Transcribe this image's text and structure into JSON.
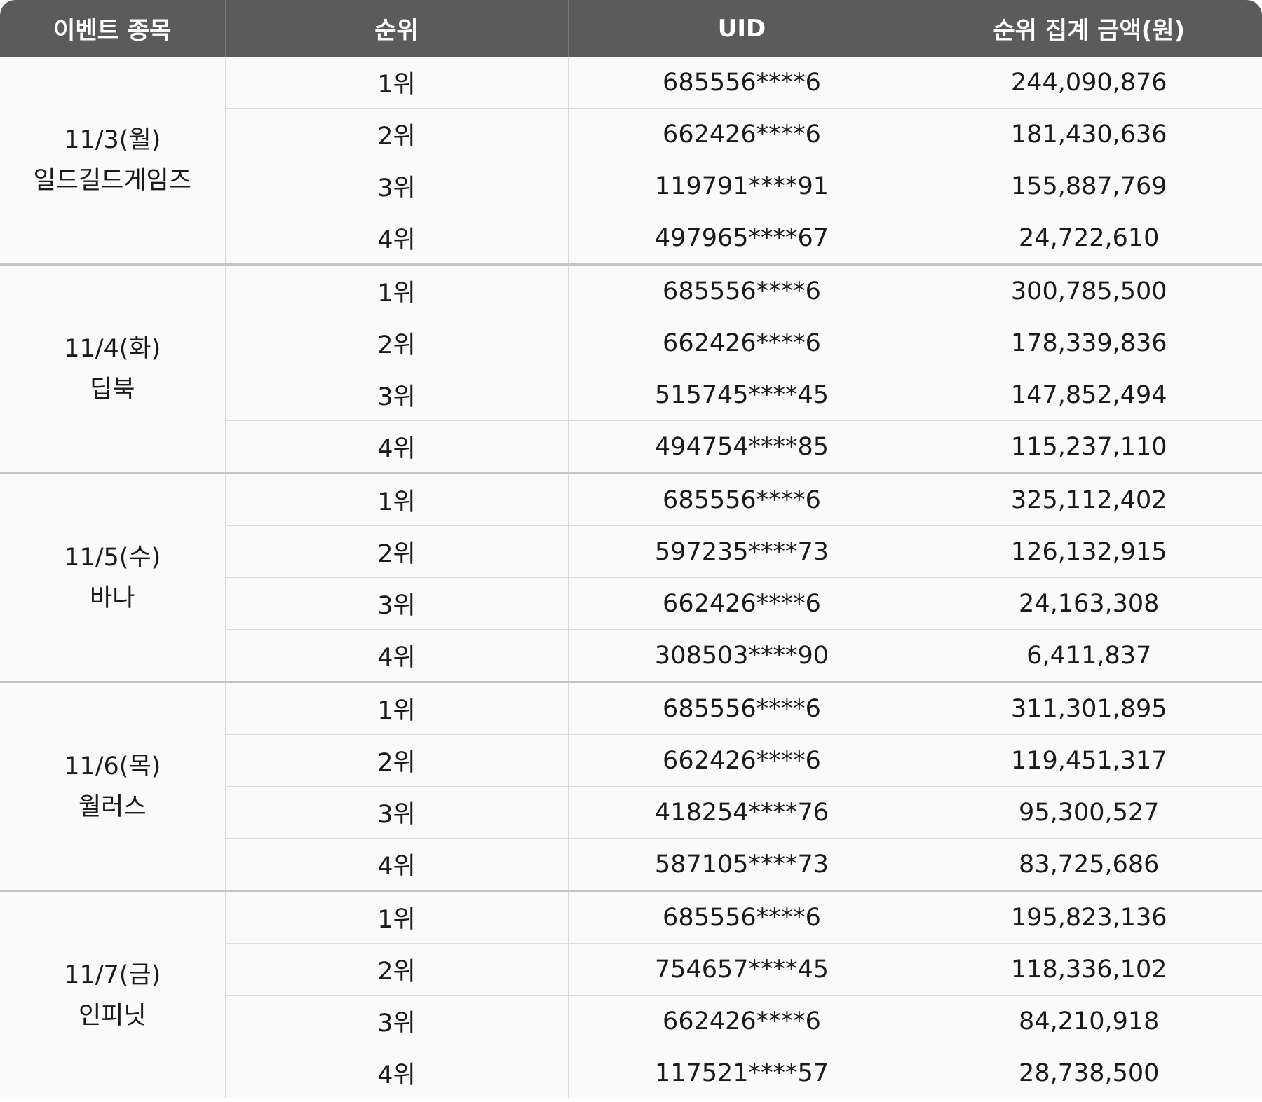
{
  "table": {
    "headers": [
      "이벤트 종목",
      "순위",
      "UID",
      "순위 집계  금액(원)"
    ],
    "groups": [
      {
        "date": "11/3(월)",
        "name": "일드길드게임즈",
        "rows": [
          {
            "rank": "1위",
            "uid": "685556****6",
            "amount": "244,090,876"
          },
          {
            "rank": "2위",
            "uid": "662426****6",
            "amount": "181,430,636"
          },
          {
            "rank": "3위",
            "uid": "119791****91",
            "amount": "155,887,769"
          },
          {
            "rank": "4위",
            "uid": "497965****67",
            "amount": "24,722,610"
          }
        ]
      },
      {
        "date": "11/4(화)",
        "name": "딥북",
        "rows": [
          {
            "rank": "1위",
            "uid": "685556****6",
            "amount": "300,785,500"
          },
          {
            "rank": "2위",
            "uid": "662426****6",
            "amount": "178,339,836"
          },
          {
            "rank": "3위",
            "uid": "515745****45",
            "amount": "147,852,494"
          },
          {
            "rank": "4위",
            "uid": "494754****85",
            "amount": "115,237,110"
          }
        ]
      },
      {
        "date": "11/5(수)",
        "name": "바나",
        "rows": [
          {
            "rank": "1위",
            "uid": "685556****6",
            "amount": "325,112,402"
          },
          {
            "rank": "2위",
            "uid": "597235****73",
            "amount": "126,132,915"
          },
          {
            "rank": "3위",
            "uid": "662426****6",
            "amount": "24,163,308"
          },
          {
            "rank": "4위",
            "uid": "308503****90",
            "amount": "6,411,837"
          }
        ]
      },
      {
        "date": "11/6(목)",
        "name": "월러스",
        "rows": [
          {
            "rank": "1위",
            "uid": "685556****6",
            "amount": "311,301,895"
          },
          {
            "rank": "2위",
            "uid": "662426****6",
            "amount": "119,451,317"
          },
          {
            "rank": "3위",
            "uid": "418254****76",
            "amount": "95,300,527"
          },
          {
            "rank": "4위",
            "uid": "587105****73",
            "amount": "83,725,686"
          }
        ]
      },
      {
        "date": "11/7(금)",
        "name": "인피닛",
        "rows": [
          {
            "rank": "1위",
            "uid": "685556****6",
            "amount": "195,823,136"
          },
          {
            "rank": "2위",
            "uid": "754657****45",
            "amount": "118,336,102"
          },
          {
            "rank": "3위",
            "uid": "662426****6",
            "amount": "84,210,918"
          },
          {
            "rank": "4위",
            "uid": "117521****57",
            "amount": "28,738,500"
          }
        ]
      }
    ]
  },
  "colors": {
    "header_bg": "#5b5b5b",
    "header_text": "#ffffff",
    "cell_bg": "#fafafa",
    "text": "#1a1a1a",
    "group_divider": "#c4c4c4",
    "row_divider": "#dedede"
  }
}
